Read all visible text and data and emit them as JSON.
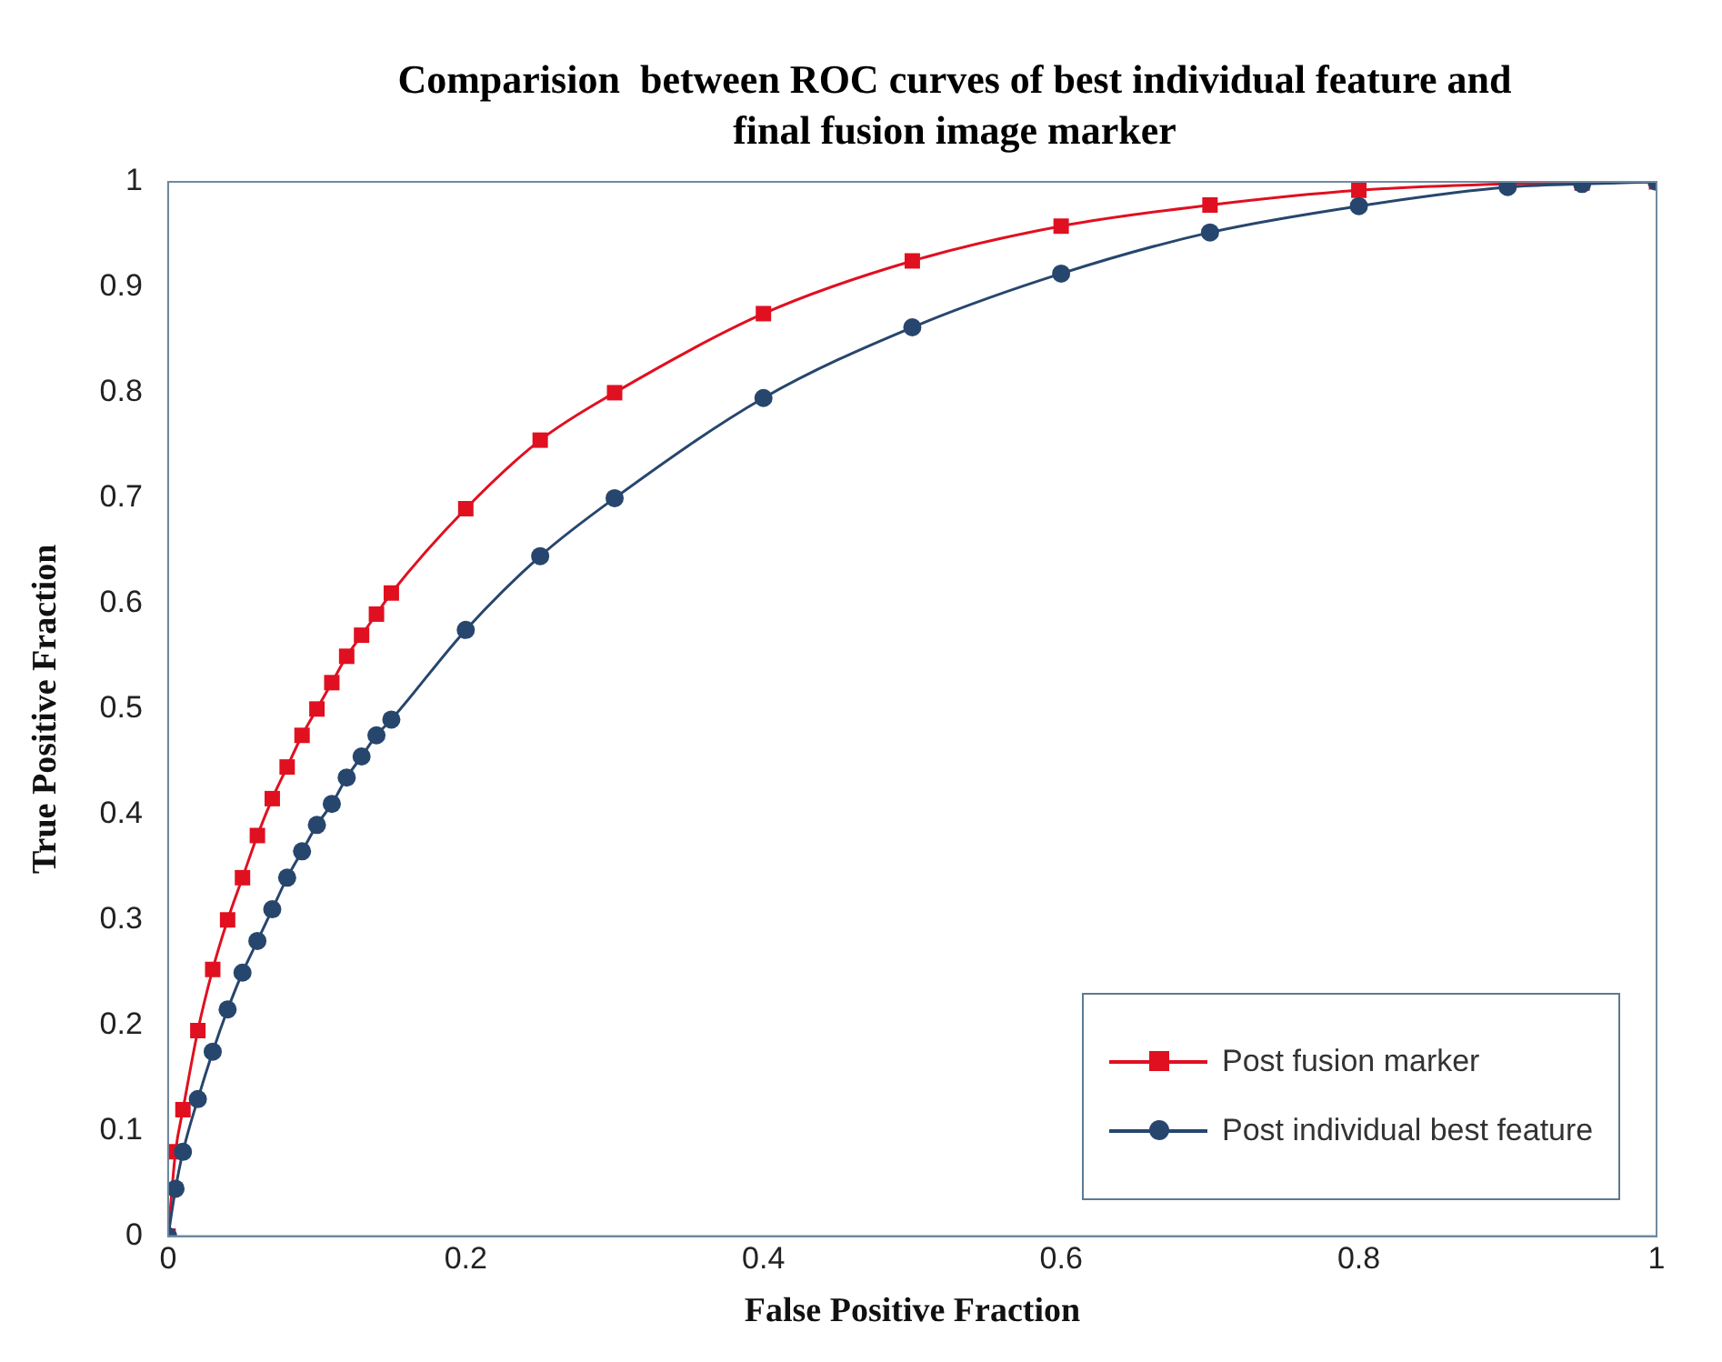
{
  "chart_data": {
    "type": "line",
    "title": "Comparision  between ROC curves of best individual feature and final fusion image marker",
    "xlabel": "False Positive Fraction",
    "ylabel": "True Positive Fraction",
    "xlim": [
      0,
      1
    ],
    "xticks": [
      0,
      0.2,
      0.4,
      0.6,
      0.8,
      1
    ],
    "ylim": [
      0,
      1
    ],
    "yticks": [
      0,
      0.1,
      0.2,
      0.3,
      0.4,
      0.5,
      0.6,
      0.7,
      0.8,
      0.9,
      1
    ],
    "grid": false,
    "legend": "bottom right",
    "line_style": "solid",
    "series": [
      {
        "name": "Post fusion marker",
        "color": "#e01020",
        "marker": "square",
        "x": [
          0,
          0.005,
          0.01,
          0.02,
          0.03,
          0.04,
          0.05,
          0.06,
          0.07,
          0.08,
          0.09,
          0.1,
          0.11,
          0.12,
          0.13,
          0.14,
          0.15,
          0.2,
          0.25,
          0.3,
          0.4,
          0.5,
          0.6,
          0.7,
          0.8,
          0.9,
          0.95,
          1
        ],
        "values": [
          0,
          0.08,
          0.12,
          0.195,
          0.253,
          0.3,
          0.34,
          0.38,
          0.415,
          0.445,
          0.475,
          0.5,
          0.525,
          0.55,
          0.57,
          0.59,
          0.61,
          0.69,
          0.755,
          0.8,
          0.875,
          0.925,
          0.958,
          0.978,
          0.992,
          0.998,
          0.999,
          1
        ]
      },
      {
        "name": "Post individual best feature",
        "color": "#27466e",
        "marker": "circle",
        "x": [
          0,
          0.005,
          0.01,
          0.02,
          0.03,
          0.04,
          0.05,
          0.06,
          0.07,
          0.08,
          0.09,
          0.1,
          0.11,
          0.12,
          0.13,
          0.14,
          0.15,
          0.2,
          0.25,
          0.3,
          0.4,
          0.5,
          0.6,
          0.7,
          0.8,
          0.9,
          0.95,
          1
        ],
        "values": [
          0,
          0.045,
          0.08,
          0.13,
          0.175,
          0.215,
          0.25,
          0.28,
          0.31,
          0.34,
          0.365,
          0.39,
          0.41,
          0.435,
          0.455,
          0.475,
          0.49,
          0.575,
          0.645,
          0.7,
          0.795,
          0.862,
          0.913,
          0.952,
          0.977,
          0.995,
          0.998,
          1
        ]
      }
    ]
  }
}
